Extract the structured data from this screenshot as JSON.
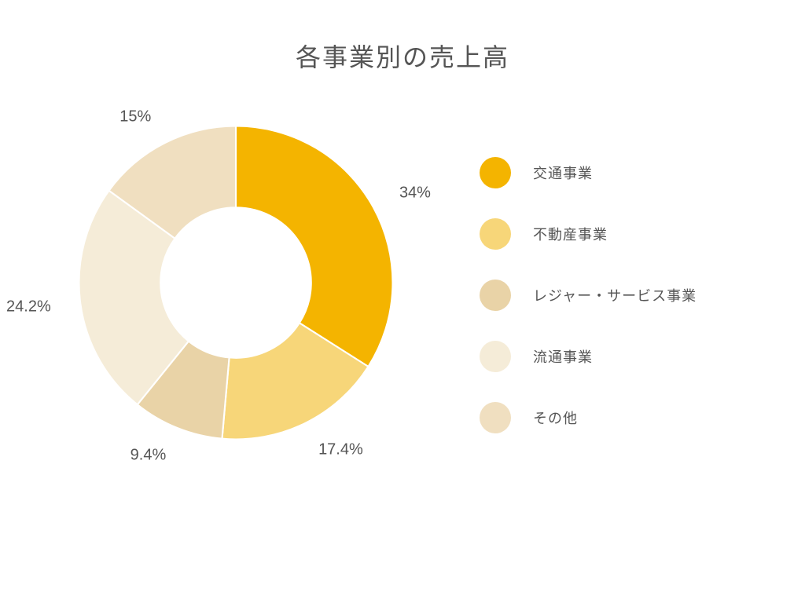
{
  "chart": {
    "type": "donut",
    "title": "各事業別の売上高",
    "title_fontsize": 32,
    "title_color": "#555555",
    "background_color": "#ffffff",
    "inner_radius_pct": 48,
    "outer_radius_pct": 100,
    "start_angle_deg": 0,
    "label_fontsize": 20,
    "label_color": "#555555",
    "legend_fontsize": 18,
    "legend_color": "#555555",
    "slices": [
      {
        "label": "交通事業",
        "value": 34.0,
        "display": "34%",
        "color": "#f4b400"
      },
      {
        "label": "不動産事業",
        "value": 17.4,
        "display": "17.4%",
        "color": "#f7d679"
      },
      {
        "label": "レジャー・サービス事業",
        "value": 9.4,
        "display": "9.4%",
        "color": "#e9d3a7"
      },
      {
        "label": "流通事業",
        "value": 24.2,
        "display": "24.2%",
        "color": "#f5ecd8"
      },
      {
        "label": "その他",
        "value": 15.0,
        "display": "15%",
        "color": "#f0dfc0"
      }
    ]
  }
}
